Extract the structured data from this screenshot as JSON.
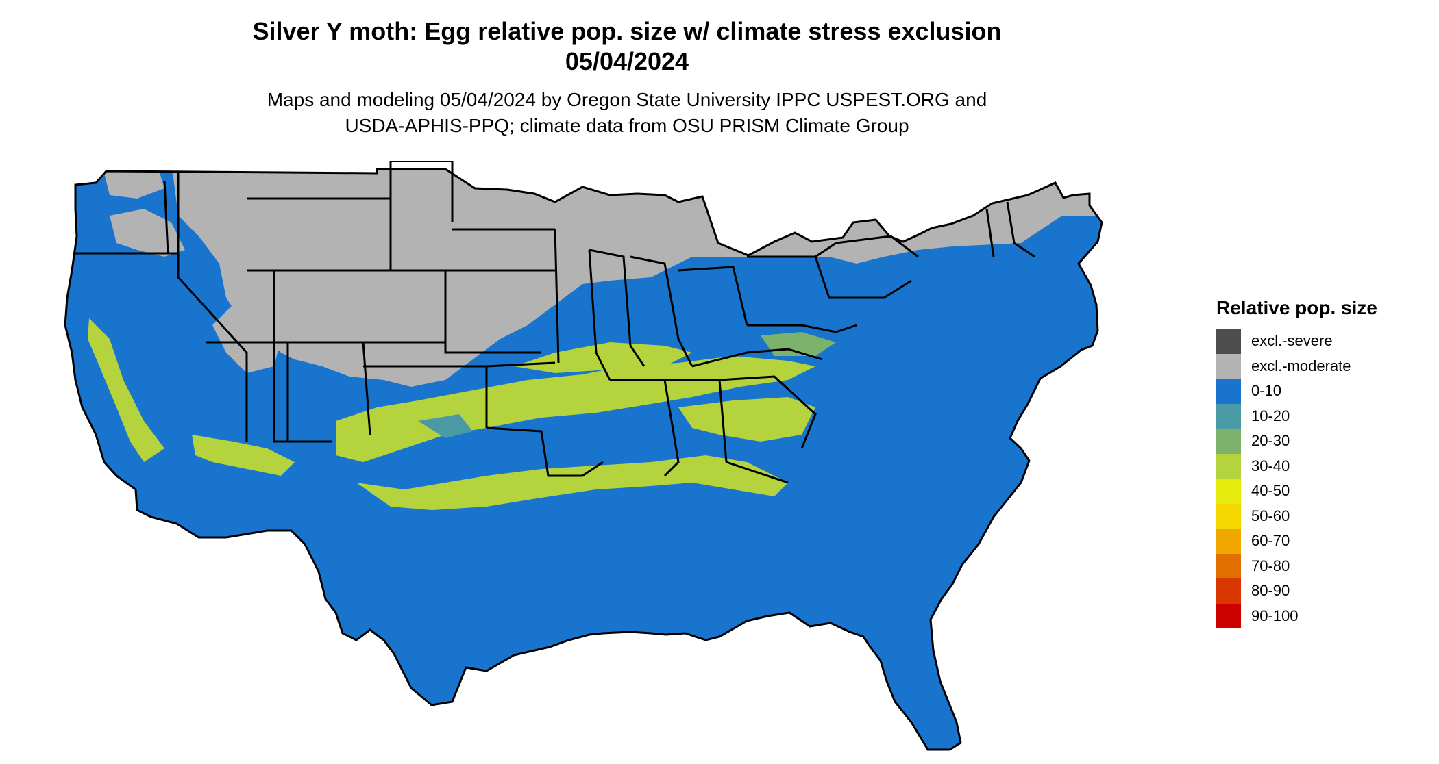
{
  "title": {
    "line1": "Silver Y moth: Egg relative pop. size w/ climate stress exclusion",
    "line2": "05/04/2024"
  },
  "subtitle": {
    "line1": "Maps and modeling 05/04/2024 by Oregon State University IPPC USPEST.ORG and",
    "line2": "USDA-APHIS-PPQ; climate data from OSU PRISM Climate Group"
  },
  "legend": {
    "title": "Relative pop. size",
    "items": [
      {
        "label": "excl.-severe",
        "color": "#4d4d4d"
      },
      {
        "label": "excl.-moderate",
        "color": "#b3b3b3"
      },
      {
        "label": "0-10",
        "color": "#1874cd"
      },
      {
        "label": "10-20",
        "color": "#4a9aa6"
      },
      {
        "label": "20-30",
        "color": "#7db26c"
      },
      {
        "label": "30-40",
        "color": "#b5d33d"
      },
      {
        "label": "40-50",
        "color": "#e5ec0d"
      },
      {
        "label": "50-60",
        "color": "#f5d800"
      },
      {
        "label": "60-70",
        "color": "#f0a800"
      },
      {
        "label": "70-80",
        "color": "#e07000"
      },
      {
        "label": "80-90",
        "color": "#d83800"
      },
      {
        "label": "90-100",
        "color": "#cd0000"
      }
    ]
  }
}
